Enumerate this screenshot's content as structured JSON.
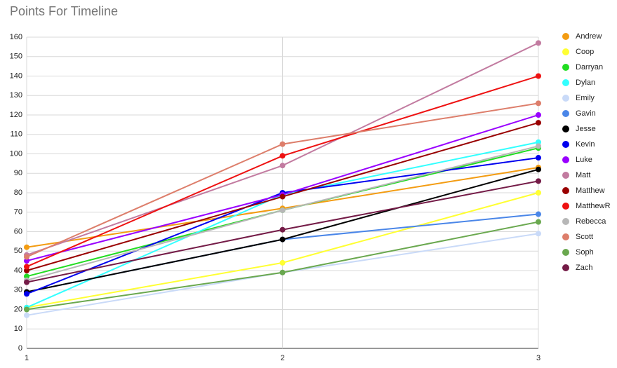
{
  "chart_data": {
    "type": "line",
    "title": "Points For Timeline",
    "x": [
      1,
      2,
      3
    ],
    "xlim": [
      1,
      3
    ],
    "xticks": [
      1,
      2,
      3
    ],
    "ylim": [
      0,
      160
    ],
    "yticks": [
      0,
      10,
      20,
      30,
      40,
      50,
      60,
      70,
      80,
      90,
      100,
      110,
      120,
      130,
      140,
      150,
      160
    ],
    "grid": true,
    "legend": "right",
    "series": [
      {
        "name": "Andrew",
        "color": "#f39c12",
        "values": [
          52,
          72,
          93
        ]
      },
      {
        "name": "Coop",
        "color": "#ffff33",
        "values": [
          21,
          44,
          80
        ]
      },
      {
        "name": "Darryan",
        "color": "#22dd22",
        "values": [
          37,
          71,
          103
        ]
      },
      {
        "name": "Dylan",
        "color": "#33ffff",
        "values": [
          21,
          79,
          106
        ]
      },
      {
        "name": "Emily",
        "color": "#c9daf8",
        "values": [
          17,
          39,
          59
        ]
      },
      {
        "name": "Gavin",
        "color": "#4a86e8",
        "values": [
          29,
          56,
          69
        ]
      },
      {
        "name": "Jesse",
        "color": "#000000",
        "values": [
          29,
          56,
          92
        ]
      },
      {
        "name": "Kevin",
        "color": "#0000ee",
        "values": [
          28,
          80,
          98
        ]
      },
      {
        "name": "Luke",
        "color": "#9900ff",
        "values": [
          45,
          79,
          120
        ]
      },
      {
        "name": "Matt",
        "color": "#c27ba0",
        "values": [
          48,
          94,
          157
        ]
      },
      {
        "name": "Matthew",
        "color": "#990000",
        "values": [
          40,
          78,
          116
        ]
      },
      {
        "name": "MatthewR",
        "color": "#ee1111",
        "values": [
          42,
          99,
          140
        ]
      },
      {
        "name": "Rebecca",
        "color": "#b7b7b7",
        "values": [
          35,
          71,
          104
        ]
      },
      {
        "name": "Scott",
        "color": "#dd7e6b",
        "values": [
          47,
          105,
          126
        ]
      },
      {
        "name": "Soph",
        "color": "#6aa84f",
        "values": [
          20,
          39,
          65
        ]
      },
      {
        "name": "Zach",
        "color": "#741b47",
        "values": [
          34,
          61,
          86
        ]
      }
    ]
  }
}
